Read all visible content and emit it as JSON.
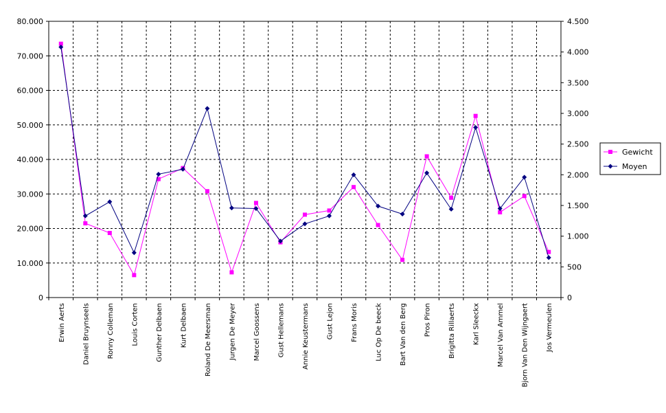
{
  "chart_data": {
    "type": "line",
    "categories": [
      "Erwin Aerts",
      "Daniel Bruynseels",
      "Ronny Colleman",
      "Louis Corten",
      "Gunther Delbaen",
      "Kurt Delbaen",
      "Roland De Meersman",
      "Jurgen De Meyer",
      "Marcel Goossens",
      "Gust Hellemans",
      "Annie Keustermans",
      "Gust Lejon",
      "Frans Moris",
      "Luc Op De beeck",
      "Bart Van den Berg",
      "Pros Piron",
      "Brigitta Rillaerts",
      "Karl Sleeckx",
      "Marcel Van Ammel",
      "Bjorn Van Den Wijngaert",
      "Jos Vermeulen"
    ],
    "left_axis": {
      "ylim": [
        0,
        80000
      ],
      "ticks": [
        "0",
        "10.000",
        "20.000",
        "30.000",
        "40.000",
        "50.000",
        "60.000",
        "70.000",
        "80.000"
      ],
      "tick_values": [
        0,
        10000,
        20000,
        30000,
        40000,
        50000,
        60000,
        70000,
        80000
      ]
    },
    "right_axis": {
      "ylim": [
        0,
        4500
      ],
      "ticks": [
        "0",
        "500",
        "1.000",
        "1.500",
        "2.000",
        "2.500",
        "3.000",
        "3.500",
        "4.000",
        "4.500"
      ],
      "tick_values": [
        0,
        500,
        1000,
        1500,
        2000,
        2500,
        3000,
        3500,
        4000,
        4500
      ]
    },
    "series": [
      {
        "name": "Gewicht",
        "axis": "left",
        "color": "#ff00ff",
        "marker": "square",
        "values": [
          73500,
          21500,
          18700,
          6500,
          34300,
          37500,
          30800,
          7300,
          27400,
          16000,
          24000,
          25200,
          32000,
          21000,
          10900,
          40900,
          28900,
          52600,
          24700,
          29400,
          13200
        ]
      },
      {
        "name": "Moyen",
        "axis": "right",
        "color": "#000080",
        "marker": "diamond",
        "values": [
          4080,
          1330,
          1560,
          730,
          2010,
          2090,
          3080,
          1460,
          1450,
          920,
          1200,
          1330,
          2000,
          1490,
          1360,
          2030,
          1440,
          2770,
          1450,
          1960,
          650
        ]
      }
    ],
    "grid": {
      "horizontal": true,
      "vertical": true,
      "style": "dashed"
    },
    "legend": {
      "position": "right"
    },
    "title": "",
    "xlabel": "",
    "ylabel": ""
  }
}
